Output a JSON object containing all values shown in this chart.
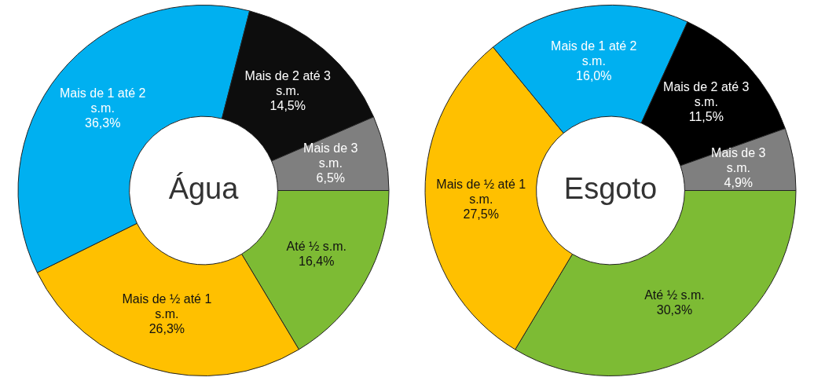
{
  "chart_data": [
    {
      "type": "donut",
      "title": "Água",
      "categories": [
        "Até ½ s.m.",
        "Mais de ½ até 1 s.m.",
        "Mais de 1 até 2 s.m.",
        "Mais de 2 até 3 s.m.",
        "Mais de 3 s.m."
      ],
      "values": [
        16.4,
        26.3,
        36.3,
        14.5,
        6.5
      ],
      "value_labels": [
        "16,4%",
        "26,3%",
        "36,3%",
        "14,5%",
        "6,5%"
      ],
      "colors": [
        "#7dbb34",
        "#ffc000",
        "#00b0f0",
        "#0d0d0d",
        "#7f7f7f"
      ]
    },
    {
      "type": "donut",
      "title": "Esgoto",
      "categories": [
        "Até ½ s.m.",
        "Mais de ½ até 1 s.m.",
        "Mais de 1 até 2 s.m.",
        "Mais de 2 até 3 s.m.",
        "Mais de 3 s.m."
      ],
      "values": [
        30.3,
        27.5,
        16.0,
        11.5,
        4.9
      ],
      "value_labels": [
        "30,3%",
        "27,5%",
        "16,0%",
        "11,5%",
        "4,9%"
      ],
      "colors": [
        "#7dbb34",
        "#ffc000",
        "#00b0f0",
        "#000000",
        "#7f7f7f"
      ]
    }
  ]
}
